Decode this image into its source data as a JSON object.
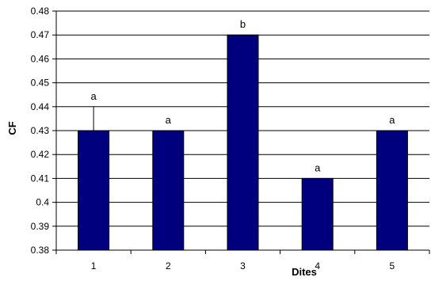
{
  "chart_data": {
    "type": "bar",
    "title": "",
    "xlabel": "Dites",
    "ylabel": "CF",
    "categories": [
      "1",
      "2",
      "3",
      "4",
      "5"
    ],
    "values": [
      0.43,
      0.43,
      0.47,
      0.41,
      0.43
    ],
    "bar_labels": [
      "a",
      "a",
      "b",
      "a",
      "a"
    ],
    "error_bar": {
      "category": "1",
      "upper": 0.44
    },
    "ylim": [
      0.38,
      0.48
    ],
    "yticks": [
      "0.38",
      "0.39",
      "0.4",
      "0.41",
      "0.42",
      "0.43",
      "0.44",
      "0.45",
      "0.46",
      "0.47",
      "0.48"
    ],
    "grid": "horizontal",
    "legend": "none",
    "bar_color": "#00007f"
  }
}
